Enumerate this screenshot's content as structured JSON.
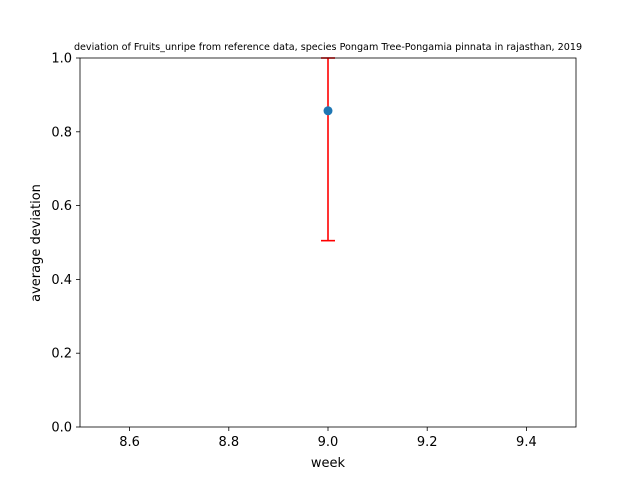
{
  "chart_data": {
    "type": "scatter",
    "title": "deviation of Fruits_unripe from reference data, species Pongam Tree-Pongamia pinnata in rajasthan, 2019",
    "xlabel": "week",
    "ylabel": "average deviation",
    "xlim": [
      8.5,
      9.5
    ],
    "ylim": [
      0.0,
      1.0
    ],
    "x_ticks": [
      8.6,
      8.8,
      9.0,
      9.2,
      9.4
    ],
    "x_tick_labels": [
      "8.6",
      "8.8",
      "9.0",
      "9.2",
      "9.4"
    ],
    "y_ticks": [
      0.0,
      0.2,
      0.4,
      0.6,
      0.8,
      1.0
    ],
    "y_tick_labels": [
      "0.0",
      "0.2",
      "0.4",
      "0.6",
      "0.8",
      "1.0"
    ],
    "grid": false,
    "points": [
      {
        "x": 9.0,
        "y": 0.857,
        "err_low": 0.505,
        "err_high": 1.0
      }
    ],
    "colors": {
      "marker": "#1f77b4",
      "errorbar": "#ff0000",
      "axes": "#000000"
    }
  }
}
